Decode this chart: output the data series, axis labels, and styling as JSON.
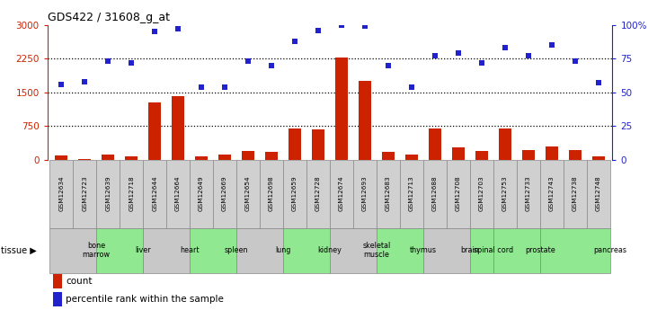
{
  "title": "GDS422 / 31608_g_at",
  "samples": [
    "GSM12634",
    "GSM12723",
    "GSM12639",
    "GSM12718",
    "GSM12644",
    "GSM12664",
    "GSM12649",
    "GSM12669",
    "GSM12654",
    "GSM12698",
    "GSM12659",
    "GSM12728",
    "GSM12674",
    "GSM12693",
    "GSM12683",
    "GSM12713",
    "GSM12688",
    "GSM12708",
    "GSM12703",
    "GSM12753",
    "GSM12733",
    "GSM12743",
    "GSM12738",
    "GSM12748"
  ],
  "count": [
    90,
    20,
    115,
    75,
    1280,
    1420,
    65,
    105,
    200,
    175,
    700,
    670,
    2275,
    1750,
    175,
    110,
    690,
    265,
    200,
    700,
    215,
    290,
    205,
    65
  ],
  "percentile": [
    56,
    58,
    73,
    72,
    95,
    97,
    54,
    54,
    73,
    70,
    88,
    96,
    100,
    99,
    70,
    54,
    77,
    79,
    72,
    83,
    77,
    85,
    73,
    57
  ],
  "tissues": [
    {
      "name": "bone\nmarrow",
      "start": 0,
      "end": 2,
      "color": "#c8c8c8"
    },
    {
      "name": "liver",
      "start": 2,
      "end": 4,
      "color": "#90e890"
    },
    {
      "name": "heart",
      "start": 4,
      "end": 6,
      "color": "#c8c8c8"
    },
    {
      "name": "spleen",
      "start": 6,
      "end": 8,
      "color": "#90e890"
    },
    {
      "name": "lung",
      "start": 8,
      "end": 10,
      "color": "#c8c8c8"
    },
    {
      "name": "kidney",
      "start": 10,
      "end": 12,
      "color": "#90e890"
    },
    {
      "name": "skeletal\nmuscle",
      "start": 12,
      "end": 14,
      "color": "#c8c8c8"
    },
    {
      "name": "thymus",
      "start": 14,
      "end": 16,
      "color": "#90e890"
    },
    {
      "name": "brain",
      "start": 16,
      "end": 18,
      "color": "#c8c8c8"
    },
    {
      "name": "spinal cord",
      "start": 18,
      "end": 19,
      "color": "#90e890"
    },
    {
      "name": "prostate",
      "start": 19,
      "end": 21,
      "color": "#90e890"
    },
    {
      "name": "pancreas",
      "start": 21,
      "end": 24,
      "color": "#90e890"
    }
  ],
  "sample_box_color": "#d0d0d0",
  "bar_color": "#cc2200",
  "dot_color": "#2222cc",
  "left_ylim": [
    0,
    3000
  ],
  "right_ylim": [
    0,
    100
  ],
  "left_yticks": [
    0,
    750,
    1500,
    2250,
    3000
  ],
  "right_yticks": [
    0,
    25,
    50,
    75,
    100
  ],
  "right_yticklabels": [
    "0",
    "25",
    "50",
    "75",
    "100%"
  ],
  "hgrid_vals": [
    750,
    1500,
    2250
  ],
  "tissue_label": "tissue ▶"
}
